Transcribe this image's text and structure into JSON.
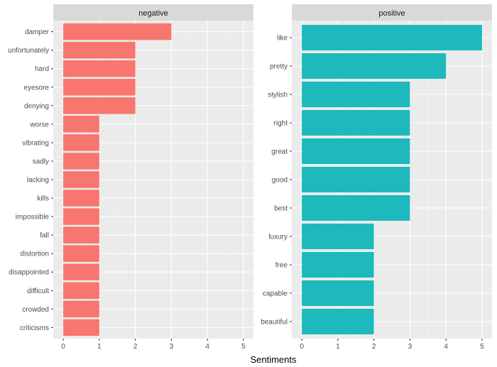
{
  "chart_data": {
    "type": "bar",
    "orientation": "horizontal",
    "xlabel": "Sentiments",
    "grid": true,
    "panels": [
      {
        "title": "negative",
        "color": "#F8766D",
        "xlim": [
          0,
          5
        ],
        "xticks": [
          0,
          1,
          2,
          3,
          4,
          5
        ],
        "categories": [
          "damper",
          "unfortunately",
          "hard",
          "eyesore",
          "denying",
          "worse",
          "vibrating",
          "sadly",
          "lacking",
          "kills",
          "impossible",
          "fall",
          "distortion",
          "disappointed",
          "difficult",
          "crowded",
          "criticisms"
        ],
        "values": [
          3,
          2,
          2,
          2,
          2,
          1,
          1,
          1,
          1,
          1,
          1,
          1,
          1,
          1,
          1,
          1,
          1
        ]
      },
      {
        "title": "positive",
        "color": "#1DB9BD",
        "xlim": [
          0,
          5
        ],
        "xticks": [
          0,
          1,
          2,
          3,
          4,
          5
        ],
        "categories": [
          "like",
          "pretty",
          "stylish",
          "right",
          "great",
          "good",
          "best",
          "luxury",
          "free",
          "capable",
          "beautiful"
        ],
        "values": [
          5,
          4,
          3,
          3,
          3,
          3,
          3,
          2,
          2,
          2,
          2
        ]
      }
    ]
  }
}
